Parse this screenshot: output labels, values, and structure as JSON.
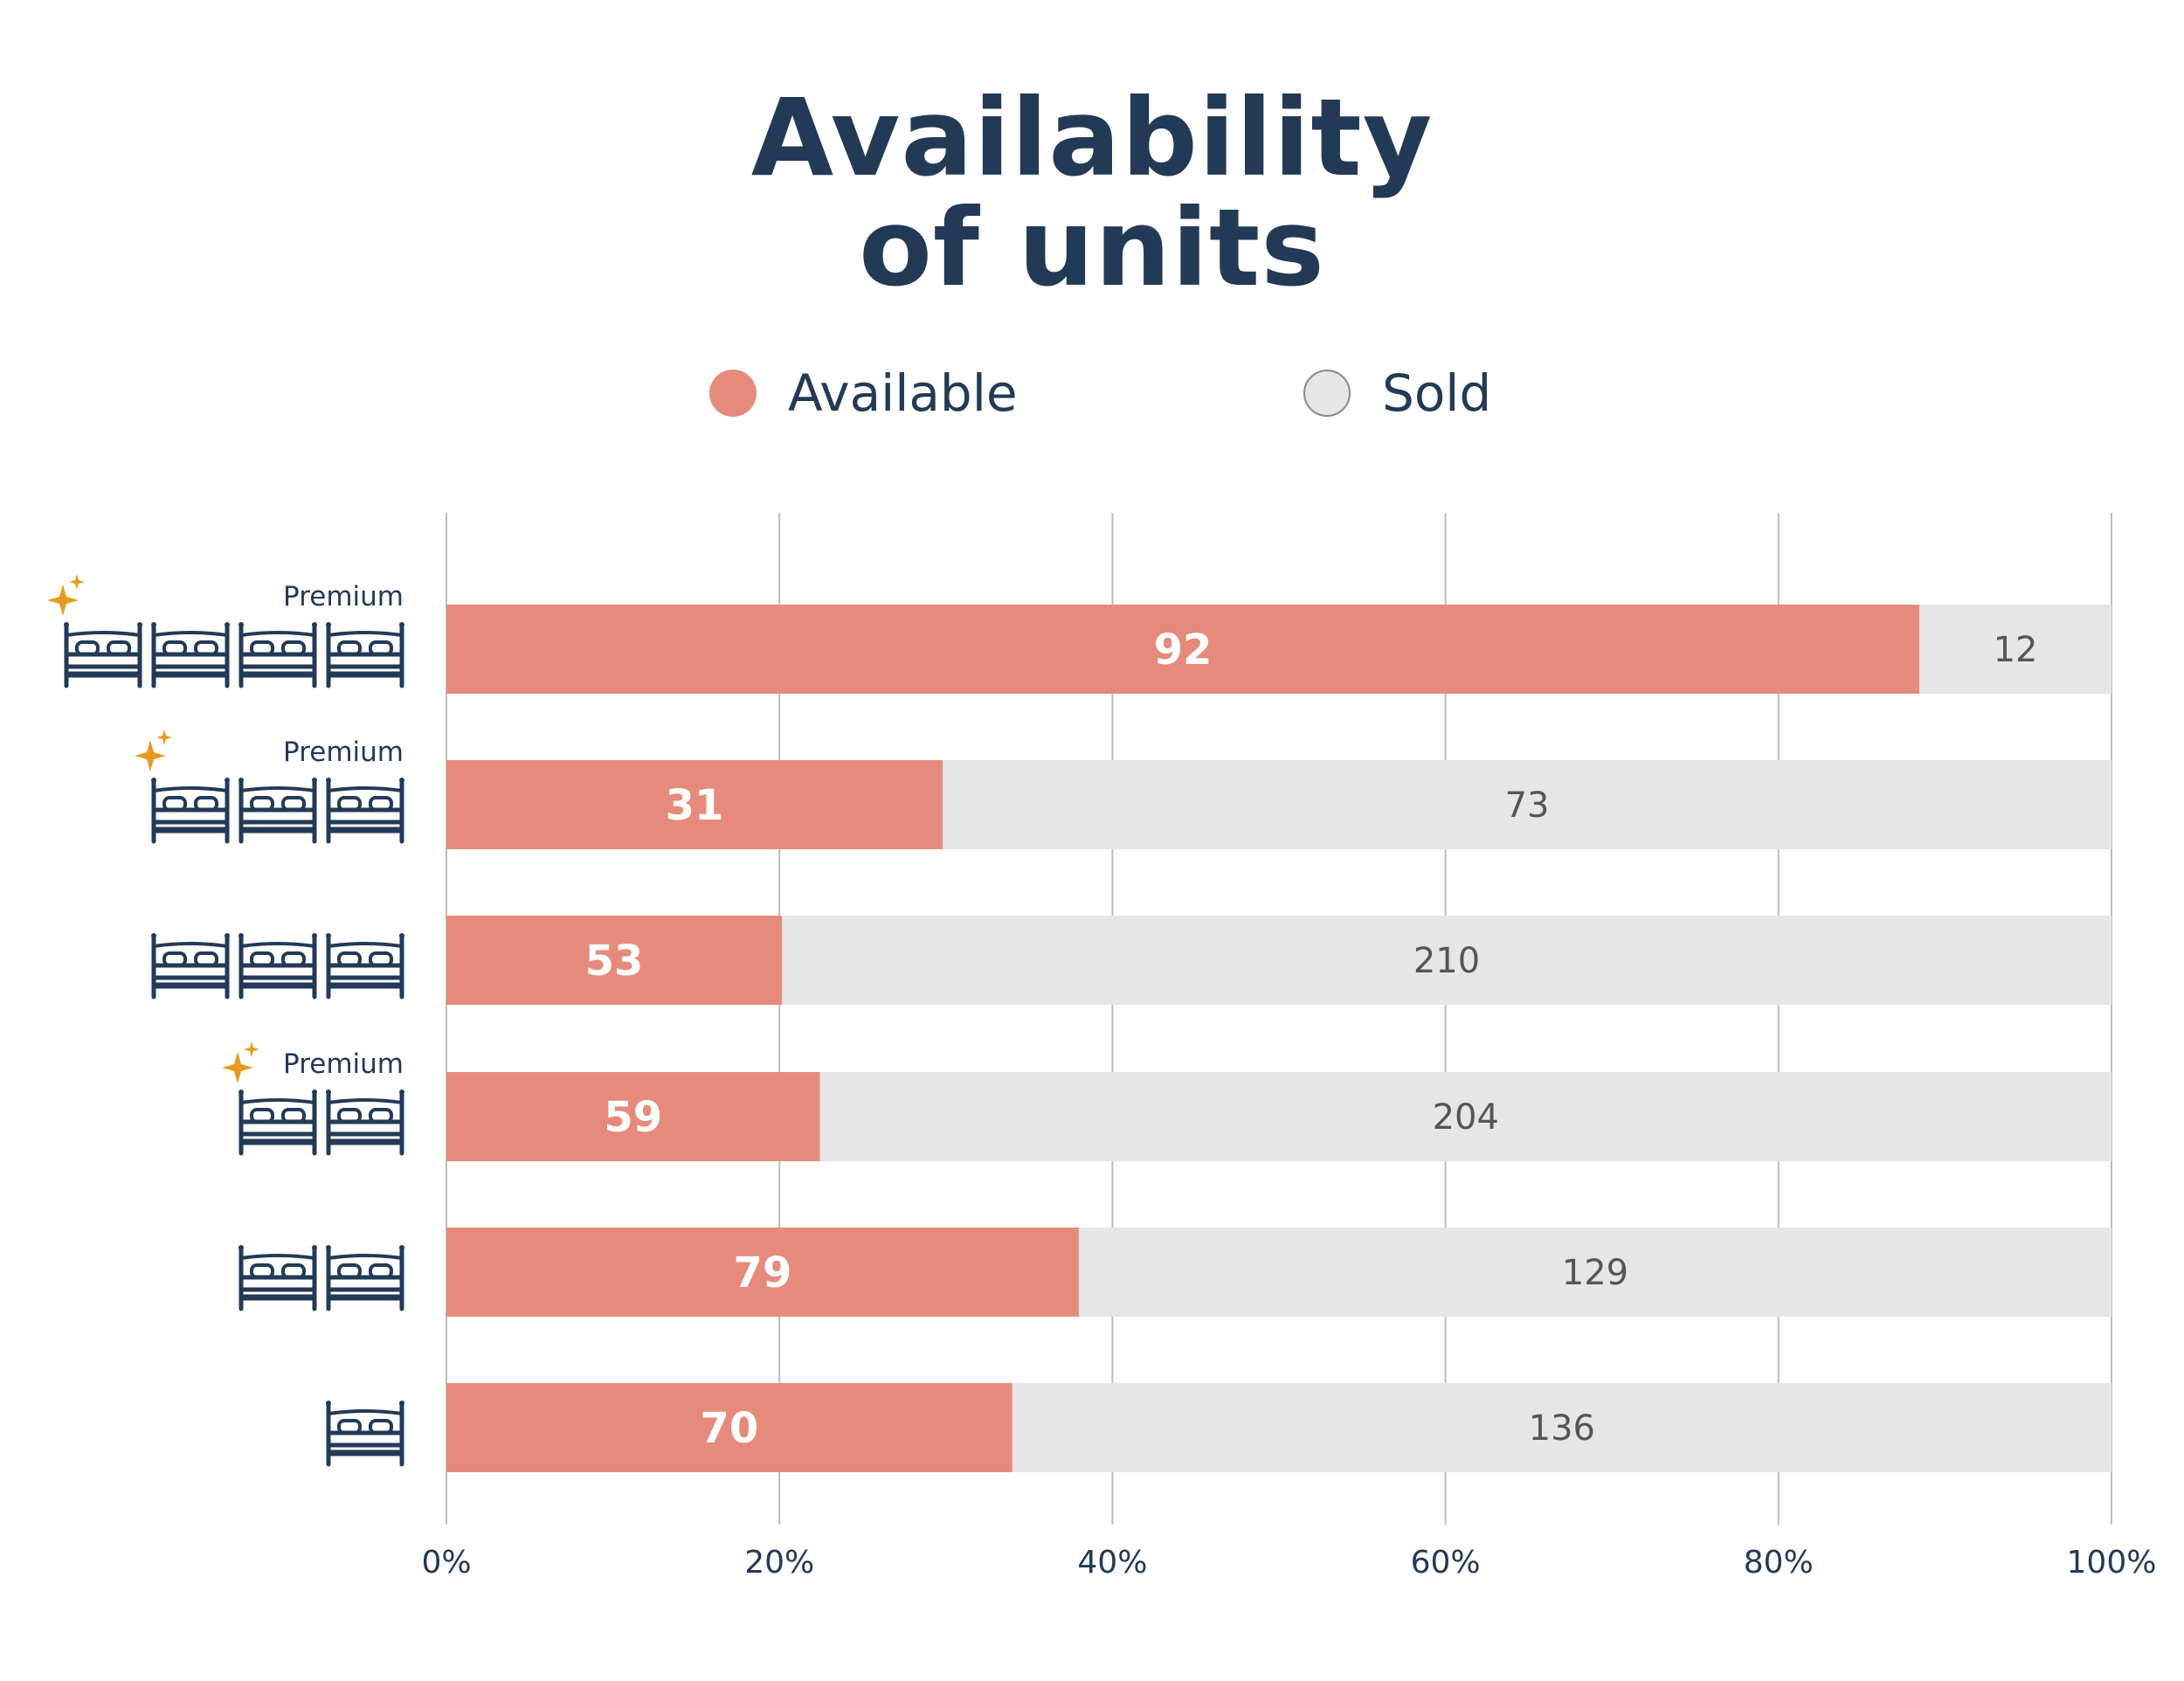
{
  "title_line1": "Availability",
  "title_line2": "of units",
  "colors": {
    "available": "#e68b7b",
    "sold": "#e6e6e6",
    "text": "#233a57",
    "grid": "#bdbdbd",
    "star": "#e89a1d",
    "sold_label": "#555555"
  },
  "legend": [
    {
      "label": "Available",
      "color": "#e68b7b"
    },
    {
      "label": "Sold",
      "color": "#e6e6e6"
    }
  ],
  "chart_data": {
    "type": "bar",
    "orientation": "horizontal",
    "stacking": "percent",
    "x_ticks": [
      "0%",
      "20%",
      "40%",
      "60%",
      "80%",
      "100%"
    ],
    "xlim": [
      0,
      100
    ],
    "grid": true,
    "legend_position": "top",
    "categories": [
      {
        "beds": 4,
        "premium": true,
        "label": "Premium"
      },
      {
        "beds": 3,
        "premium": true,
        "label": "Premium"
      },
      {
        "beds": 3,
        "premium": false,
        "label": ""
      },
      {
        "beds": 2,
        "premium": true,
        "label": "Premium"
      },
      {
        "beds": 2,
        "premium": false,
        "label": ""
      },
      {
        "beds": 1,
        "premium": false,
        "label": ""
      }
    ],
    "series": [
      {
        "name": "Available",
        "values": [
          92,
          31,
          53,
          59,
          79,
          70
        ]
      },
      {
        "name": "Sold",
        "values": [
          12,
          73,
          210,
          204,
          129,
          136
        ]
      }
    ]
  }
}
